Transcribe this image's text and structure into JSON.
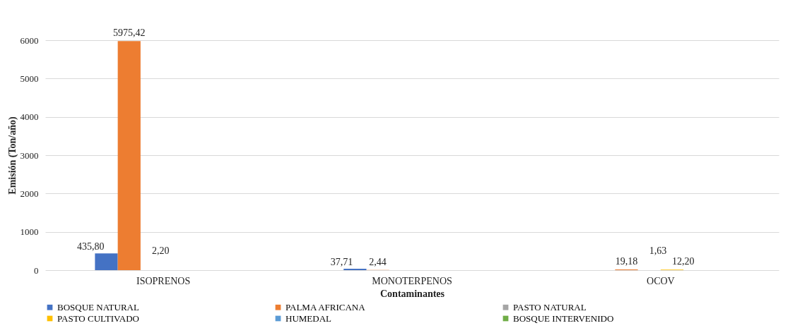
{
  "chart_data": {
    "type": "bar",
    "xlabel": "Contaminantes",
    "ylabel": "Emisión  (Ton/año)",
    "categories": [
      "ISOPRENOS",
      "MONOTERPENOS",
      "OCOV"
    ],
    "series": [
      {
        "name": "BOSQUE NATURAL",
        "color": "#4472c4",
        "values": [
          435.8,
          37.71,
          0
        ],
        "value_labels": [
          "435,80",
          "37,71",
          null
        ]
      },
      {
        "name": "PALMA AFRICANA",
        "color": "#ed7d31",
        "values": [
          5975.42,
          2.44,
          19.18
        ],
        "value_labels": [
          "5975,42",
          "2,44",
          "19,18"
        ]
      },
      {
        "name": "PASTO NATURAL",
        "color": "#a5a5a5",
        "values": [
          2.2,
          0,
          1.63
        ],
        "value_labels": [
          "2,20",
          null,
          "1,63"
        ]
      },
      {
        "name": "PASTO CULTIVADO",
        "color": "#ffc000",
        "values": [
          0,
          0,
          12.2
        ],
        "value_labels": [
          null,
          null,
          "12,20"
        ]
      },
      {
        "name": "HUMEDAL",
        "color": "#5b9bd5",
        "values": [
          0,
          0,
          0
        ],
        "value_labels": [
          null,
          null,
          null
        ]
      },
      {
        "name": "BOSQUE INTERVENIDO",
        "color": "#70ad47",
        "values": [
          0,
          0,
          0
        ],
        "value_labels": [
          null,
          null,
          null
        ]
      }
    ],
    "ylim": [
      0,
      6000
    ],
    "yticks": [
      0,
      1000,
      2000,
      3000,
      4000,
      5000,
      6000
    ],
    "grid": "y",
    "legend": "bottom"
  }
}
